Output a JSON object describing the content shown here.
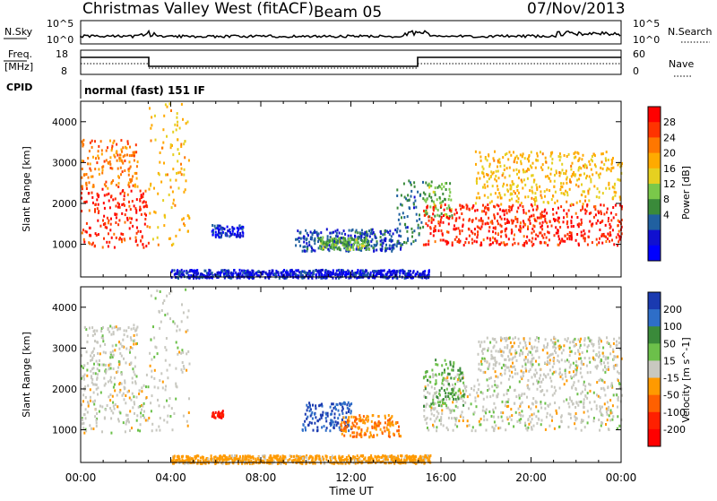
{
  "header": {
    "station": "Christmas Valley West (fitACF)",
    "beam": "Beam 05",
    "date": "07/Nov/2013"
  },
  "top_panels": {
    "nsky_label": "N.Sky",
    "nsearch_label": "N.Search",
    "nsky_ticks": [
      "10^5",
      "10^0"
    ],
    "nsearch_ticks": [
      "10^5",
      "10^0"
    ],
    "freq_label_1": "Freq.",
    "freq_label_2": "[MHz]",
    "freq_ticks": [
      "18",
      "8"
    ],
    "nave_label": "Nave",
    "nave_ticks": [
      "60",
      "0"
    ],
    "cpid_label": "CPID",
    "cpid_value": "normal (fast) 151 IF"
  },
  "chart_data": [
    {
      "type": "heatmap",
      "name": "power",
      "ylabel": "Slant Range [km]",
      "xlabel": "",
      "x_ticks": [
        "00:00",
        "04:00",
        "08:00",
        "12:00",
        "16:00",
        "20:00",
        "00:00"
      ],
      "x_range_hours": [
        0,
        24
      ],
      "y_ticks": [
        1000,
        2000,
        3000,
        4000
      ],
      "y_range": [
        200,
        4500
      ],
      "colorbar": {
        "label": "Power [dB]",
        "ticks": [
          "28",
          "24",
          "20",
          "16",
          "12",
          "8",
          "4"
        ],
        "values": [
          28,
          24,
          20,
          16,
          12,
          8,
          4
        ],
        "colors": [
          "#ff0000",
          "#ff3300",
          "#ff7700",
          "#ffaa00",
          "#e6d020",
          "#7ac84a",
          "#3a8a3a",
          "#2060a0",
          "#1010d0",
          "#0000ff"
        ]
      },
      "regions": [
        {
          "t0": 0.0,
          "t1": 3.0,
          "r0": 950,
          "r1": 2400,
          "power": 28
        },
        {
          "t0": 0.0,
          "t1": 2.5,
          "r0": 2400,
          "r1": 3600,
          "power": 24
        },
        {
          "t0": 3.0,
          "t1": 4.8,
          "r0": 1000,
          "r1": 4500,
          "power": 20
        },
        {
          "t0": 5.8,
          "t1": 7.2,
          "r0": 1200,
          "r1": 1500,
          "power": 6
        },
        {
          "t0": 9.5,
          "t1": 14.2,
          "r0": 850,
          "r1": 1400,
          "power": 8
        },
        {
          "t0": 10.5,
          "t1": 12.8,
          "r0": 900,
          "r1": 1200,
          "power": 14
        },
        {
          "t0": 14.0,
          "t1": 15.2,
          "r0": 1000,
          "r1": 2600,
          "power": 10
        },
        {
          "t0": 15.2,
          "t1": 16.5,
          "r0": 1700,
          "r1": 2600,
          "power": 14
        },
        {
          "t0": 15.2,
          "t1": 24.0,
          "r0": 1000,
          "r1": 2000,
          "power": 28
        },
        {
          "t0": 17.5,
          "t1": 24.0,
          "r0": 2000,
          "r1": 3300,
          "power": 20
        },
        {
          "t0": 4.0,
          "t1": 15.5,
          "r0": 200,
          "r1": 400,
          "power": 6
        }
      ]
    },
    {
      "type": "heatmap",
      "name": "velocity",
      "ylabel": "Slant Range [km]",
      "xlabel": "Time UT",
      "x_ticks": [
        "00:00",
        "04:00",
        "08:00",
        "12:00",
        "16:00",
        "20:00",
        "00:00"
      ],
      "x_range_hours": [
        0,
        24
      ],
      "y_ticks": [
        1000,
        2000,
        3000,
        4000
      ],
      "y_range": [
        200,
        4500
      ],
      "colorbar": {
        "label": "Velocity [m s^-1]",
        "ticks": [
          "200",
          "100",
          "50",
          "15",
          "-15",
          "-50",
          "-100",
          "-200"
        ],
        "values": [
          200,
          100,
          50,
          15,
          -15,
          -50,
          -100,
          -200
        ],
        "colors": [
          "#1a3ab0",
          "#2e6ec8",
          "#3a8a3a",
          "#6cc04a",
          "#c8c8c0",
          "#ff9a00",
          "#ff6000",
          "#ff2000",
          "#ff0000"
        ]
      },
      "regions": [
        {
          "t0": 0.0,
          "t1": 3.0,
          "r0": 950,
          "r1": 2400,
          "velocity": 0
        },
        {
          "t0": 0.0,
          "t1": 2.5,
          "r0": 2400,
          "r1": 3600,
          "velocity": 0
        },
        {
          "t0": 3.0,
          "t1": 4.8,
          "r0": 1000,
          "r1": 4500,
          "velocity": 0
        },
        {
          "t0": 5.8,
          "t1": 6.3,
          "r0": 1300,
          "r1": 1500,
          "velocity": -200
        },
        {
          "t0": 9.8,
          "t1": 12.0,
          "r0": 1000,
          "r1": 1700,
          "velocity": 200
        },
        {
          "t0": 11.5,
          "t1": 14.2,
          "r0": 850,
          "r1": 1400,
          "velocity": -50
        },
        {
          "t0": 15.2,
          "t1": 24.0,
          "r0": 1000,
          "r1": 2400,
          "velocity": 0
        },
        {
          "t0": 15.2,
          "t1": 17.0,
          "r0": 1600,
          "r1": 2800,
          "velocity": 50
        },
        {
          "t0": 17.5,
          "t1": 24.0,
          "r0": 2400,
          "r1": 3300,
          "velocity": 0
        },
        {
          "t0": 4.0,
          "t1": 15.5,
          "r0": 200,
          "r1": 400,
          "velocity": -30
        }
      ]
    }
  ]
}
